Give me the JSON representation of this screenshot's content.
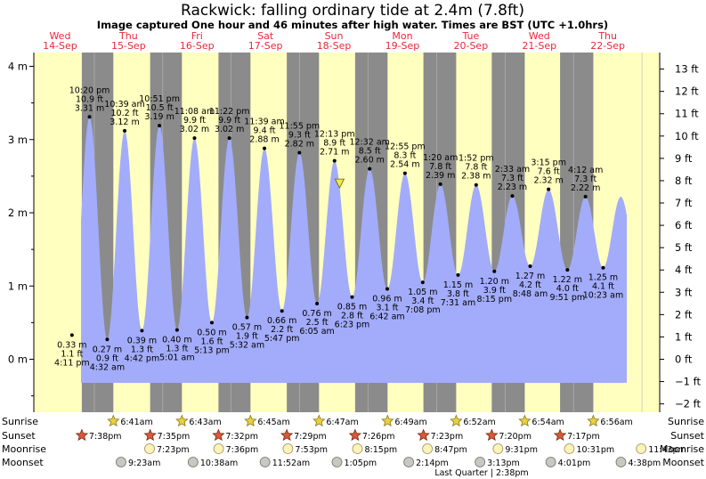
{
  "chart_data": {
    "type": "area",
    "title": "Rackwick: falling  ordinary tide at 2.4m (7.8ft)",
    "subtitle": "Image captured One hour and 46 minutes after high water. Times are BST (UTC +1.0hrs)",
    "colors": {
      "tide_fill": "#a3acfa",
      "day_band": "#ffffc0",
      "night_band": "#8b8b8b",
      "day_label": "#e8283a",
      "now_marker": "#f2e84a"
    },
    "days": [
      {
        "dow": "Wed",
        "date": "14-Sep"
      },
      {
        "dow": "Thu",
        "date": "15-Sep"
      },
      {
        "dow": "Fri",
        "date": "16-Sep"
      },
      {
        "dow": "Sat",
        "date": "17-Sep"
      },
      {
        "dow": "Sun",
        "date": "18-Sep"
      },
      {
        "dow": "Mon",
        "date": "19-Sep"
      },
      {
        "dow": "Tue",
        "date": "20-Sep"
      },
      {
        "dow": "Wed",
        "date": "21-Sep"
      },
      {
        "dow": "Thu",
        "date": "22-Sep"
      }
    ],
    "y_left": {
      "unit": "m",
      "ylim": [
        -0.6,
        4.2
      ],
      "ticks": [
        "4 m",
        "3 m",
        "2 m",
        "1 m",
        "0 m"
      ]
    },
    "y_right": {
      "unit": "ft",
      "ticks": [
        "13 ft",
        "12 ft",
        "11 ft",
        "10 ft",
        "9 ft",
        "8 ft",
        "7 ft",
        "6 ft",
        "5 ft",
        "4 ft",
        "3 ft",
        "2 ft",
        "1 ft",
        "0 ft",
        "−1 ft",
        "−2 ft"
      ]
    },
    "tides": [
      {
        "type": "low",
        "time": "4:11 pm",
        "height_m": 0.33,
        "m_label": "0.33 m",
        "ft_label": "1.1 ft"
      },
      {
        "type": "high",
        "time": "10:20 pm",
        "height_m": 3.31,
        "m_label": "3.31 m",
        "ft_label": "10.9 ft"
      },
      {
        "type": "low",
        "time": "4:32 am",
        "height_m": 0.27,
        "m_label": "0.27 m",
        "ft_label": "0.9 ft"
      },
      {
        "type": "high",
        "time": "10:39 am",
        "height_m": 3.12,
        "m_label": "3.12 m",
        "ft_label": "10.2 ft"
      },
      {
        "type": "low",
        "time": "4:42 pm",
        "height_m": 0.39,
        "m_label": "0.39 m",
        "ft_label": "1.3 ft"
      },
      {
        "type": "high",
        "time": "10:51 pm",
        "height_m": 3.19,
        "m_label": "3.19 m",
        "ft_label": "10.5 ft"
      },
      {
        "type": "low",
        "time": "5:01 am",
        "height_m": 0.4,
        "m_label": "0.40 m",
        "ft_label": "1.3 ft"
      },
      {
        "type": "high",
        "time": "11:08 am",
        "height_m": 3.02,
        "m_label": "3.02 m",
        "ft_label": "9.9 ft"
      },
      {
        "type": "low",
        "time": "5:13 pm",
        "height_m": 0.5,
        "m_label": "0.50 m",
        "ft_label": "1.6 ft"
      },
      {
        "type": "high",
        "time": "11:22 pm",
        "height_m": 3.02,
        "m_label": "3.02 m",
        "ft_label": "9.9 ft"
      },
      {
        "type": "low",
        "time": "5:32 am",
        "height_m": 0.57,
        "m_label": "0.57 m",
        "ft_label": "1.9 ft"
      },
      {
        "type": "high",
        "time": "11:39 am",
        "height_m": 2.88,
        "m_label": "2.88 m",
        "ft_label": "9.4 ft"
      },
      {
        "type": "low",
        "time": "5:47 pm",
        "height_m": 0.66,
        "m_label": "0.66 m",
        "ft_label": "2.2 ft"
      },
      {
        "type": "high",
        "time": "11:55 pm",
        "height_m": 2.82,
        "m_label": "2.82 m",
        "ft_label": "9.3 ft"
      },
      {
        "type": "low",
        "time": "6:05 am",
        "height_m": 0.76,
        "m_label": "0.76 m",
        "ft_label": "2.5 ft"
      },
      {
        "type": "high",
        "time": "12:13 pm",
        "height_m": 2.71,
        "m_label": "2.71 m",
        "ft_label": "8.9 ft"
      },
      {
        "type": "low",
        "time": "6:23 pm",
        "height_m": 0.85,
        "m_label": "0.85 m",
        "ft_label": "2.8 ft"
      },
      {
        "type": "high",
        "time": "12:32 am",
        "height_m": 2.6,
        "m_label": "2.60 m",
        "ft_label": "8.5 ft"
      },
      {
        "type": "low",
        "time": "6:42 am",
        "height_m": 0.96,
        "m_label": "0.96 m",
        "ft_label": "3.1 ft"
      },
      {
        "type": "high",
        "time": "12:55 pm",
        "height_m": 2.54,
        "m_label": "2.54 m",
        "ft_label": "8.3 ft"
      },
      {
        "type": "low",
        "time": "7:08 pm",
        "height_m": 1.05,
        "m_label": "1.05 m",
        "ft_label": "3.4 ft"
      },
      {
        "type": "high",
        "time": "1:20 am",
        "height_m": 2.39,
        "m_label": "2.39 m",
        "ft_label": "7.8 ft"
      },
      {
        "type": "low",
        "time": "7:31 am",
        "height_m": 1.15,
        "m_label": "1.15 m",
        "ft_label": "3.8 ft"
      },
      {
        "type": "high",
        "time": "1:52 pm",
        "height_m": 2.38,
        "m_label": "2.38 m",
        "ft_label": "7.8 ft"
      },
      {
        "type": "low",
        "time": "8:15 pm",
        "height_m": 1.2,
        "m_label": "1.20 m",
        "ft_label": "3.9 ft"
      },
      {
        "type": "high",
        "time": "2:33 am",
        "height_m": 2.23,
        "m_label": "2.23 m",
        "ft_label": "7.3 ft"
      },
      {
        "type": "low",
        "time": "8:48 am",
        "height_m": 1.27,
        "m_label": "1.27 m",
        "ft_label": "4.2 ft"
      },
      {
        "type": "high",
        "time": "3:15 pm",
        "height_m": 2.32,
        "m_label": "2.32 m",
        "ft_label": "7.6 ft"
      },
      {
        "type": "low",
        "time": "9:51 pm",
        "height_m": 1.22,
        "m_label": "1.22 m",
        "ft_label": "4.0 ft"
      },
      {
        "type": "high",
        "time": "4:12 am",
        "height_m": 2.22,
        "m_label": "2.22 m",
        "ft_label": "7.3 ft"
      },
      {
        "type": "low",
        "time": "10:23 am",
        "height_m": 1.25,
        "m_label": "1.25 m",
        "ft_label": "4.1 ft"
      }
    ],
    "current": {
      "height_m": 2.4,
      "time": "2:00 pm 18-Sep"
    },
    "sun_moon": {
      "sunrise_label": "Sunrise",
      "sunset_label": "Sunset",
      "moonrise_label": "Moonrise",
      "moonset_label": "Moonset",
      "sunrise": [
        "6:41am",
        "6:43am",
        "6:45am",
        "6:47am",
        "6:49am",
        "6:52am",
        "6:54am",
        "6:56am"
      ],
      "sunset": [
        "7:38pm",
        "7:35pm",
        "7:32pm",
        "7:29pm",
        "7:26pm",
        "7:23pm",
        "7:20pm",
        "7:17pm"
      ],
      "moonrise": [
        "7:23pm",
        "7:36pm",
        "7:53pm",
        "8:15pm",
        "8:47pm",
        "9:31pm",
        "10:31pm",
        "11:43pm"
      ],
      "moonset": [
        "9:23am",
        "10:38am",
        "11:52am",
        "1:05pm",
        "2:14pm",
        "3:13pm",
        "4:01pm",
        "4:38pm"
      ],
      "moon_phase": "Last Quarter | 2:38pm"
    }
  }
}
